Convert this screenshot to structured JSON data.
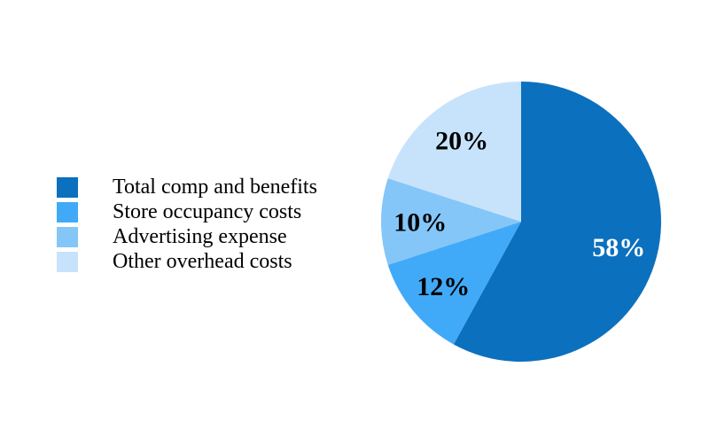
{
  "chart_data": {
    "type": "pie",
    "title": "",
    "legend_position": "left",
    "start_angle_deg": 0,
    "direction": "clockwise",
    "background": "#FFFFFF",
    "slices": [
      {
        "label": "Total comp and benefits",
        "value": 58,
        "display": "58%",
        "color": "#0B70BE",
        "label_color": "#FFFFFF"
      },
      {
        "label": "Store occupancy costs",
        "value": 12,
        "display": "12%",
        "color": "#41AAF8",
        "label_color": "#000000"
      },
      {
        "label": "Advertising expense",
        "value": 10,
        "display": "10%",
        "color": "#84C6F8",
        "label_color": "#000000"
      },
      {
        "label": "Other overhead costs",
        "value": 20,
        "display": "20%",
        "color": "#C7E3FB",
        "label_color": "#000000"
      }
    ]
  }
}
